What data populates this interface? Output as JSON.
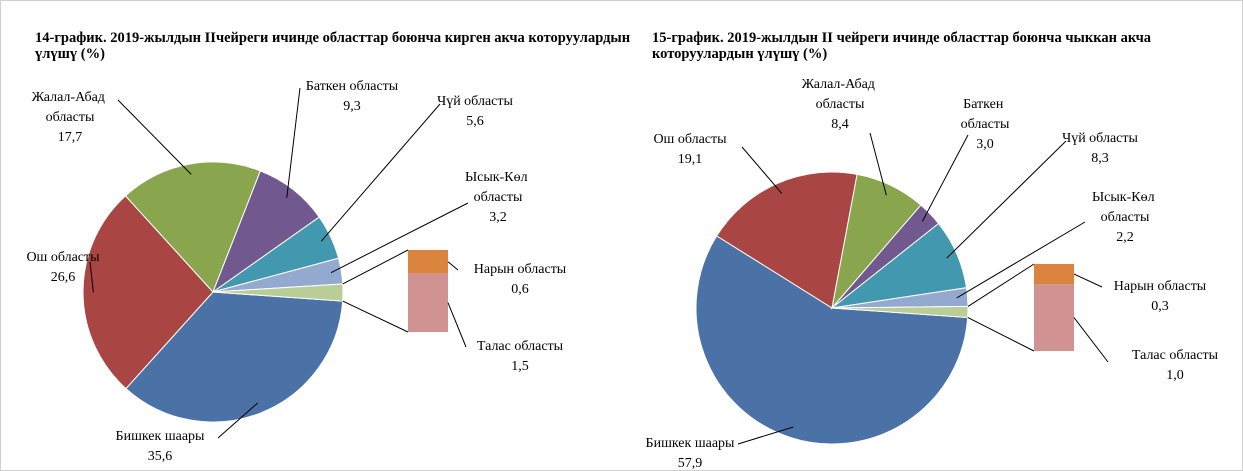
{
  "chart_data": [
    {
      "type": "pie-of-bar",
      "title": "14-график. 2019-жылдын IIчейреги ичинде областтар боюнча кирген акча которуулардын үлүшү (%)",
      "categories": [
        "Бишкек шаары",
        "Ош областы",
        "Жалал-Абад областы",
        "Баткен областы",
        "Чүй областы",
        "Ысык-Көл областы",
        "Нарын областы",
        "Талас областы"
      ],
      "values": [
        35.6,
        26.6,
        17.7,
        9.3,
        5.6,
        3.2,
        0.6,
        1.5
      ],
      "value_labels": [
        "35,6",
        "26,6",
        "17,7",
        "9,3",
        "5,6",
        "3,2",
        "0,6",
        "1,5"
      ],
      "colors": [
        "#4a72a6",
        "#a94543",
        "#89a54e",
        "#71588f",
        "#4198af",
        "#93a9cf",
        "#db843d",
        "#d09392"
      ],
      "other_color": "#b9cd96"
    },
    {
      "type": "pie-of-bar",
      "title": "15-график. 2019-жылдын II чейреги ичинде областтар боюнча чыккан акча которуулардын үлүшү (%)",
      "categories": [
        "Бишкек шаары",
        "Ош областы",
        "Жалал-Абад областы",
        "Баткен областы",
        "Чүй областы",
        "Ысык-Көл областы",
        "Нарын областы",
        "Талас областы"
      ],
      "values": [
        57.9,
        19.1,
        8.4,
        3.0,
        8.3,
        2.2,
        0.3,
        1.0
      ],
      "value_labels": [
        "57,9",
        "19,1",
        "8,4",
        "3,0",
        "8,3",
        "2,2",
        "0,3",
        "1,0"
      ],
      "colors": [
        "#4a72a6",
        "#a94543",
        "#89a54e",
        "#71588f",
        "#4198af",
        "#93a9cf",
        "#db843d",
        "#d09392"
      ],
      "other_color": "#b9cd96"
    }
  ]
}
